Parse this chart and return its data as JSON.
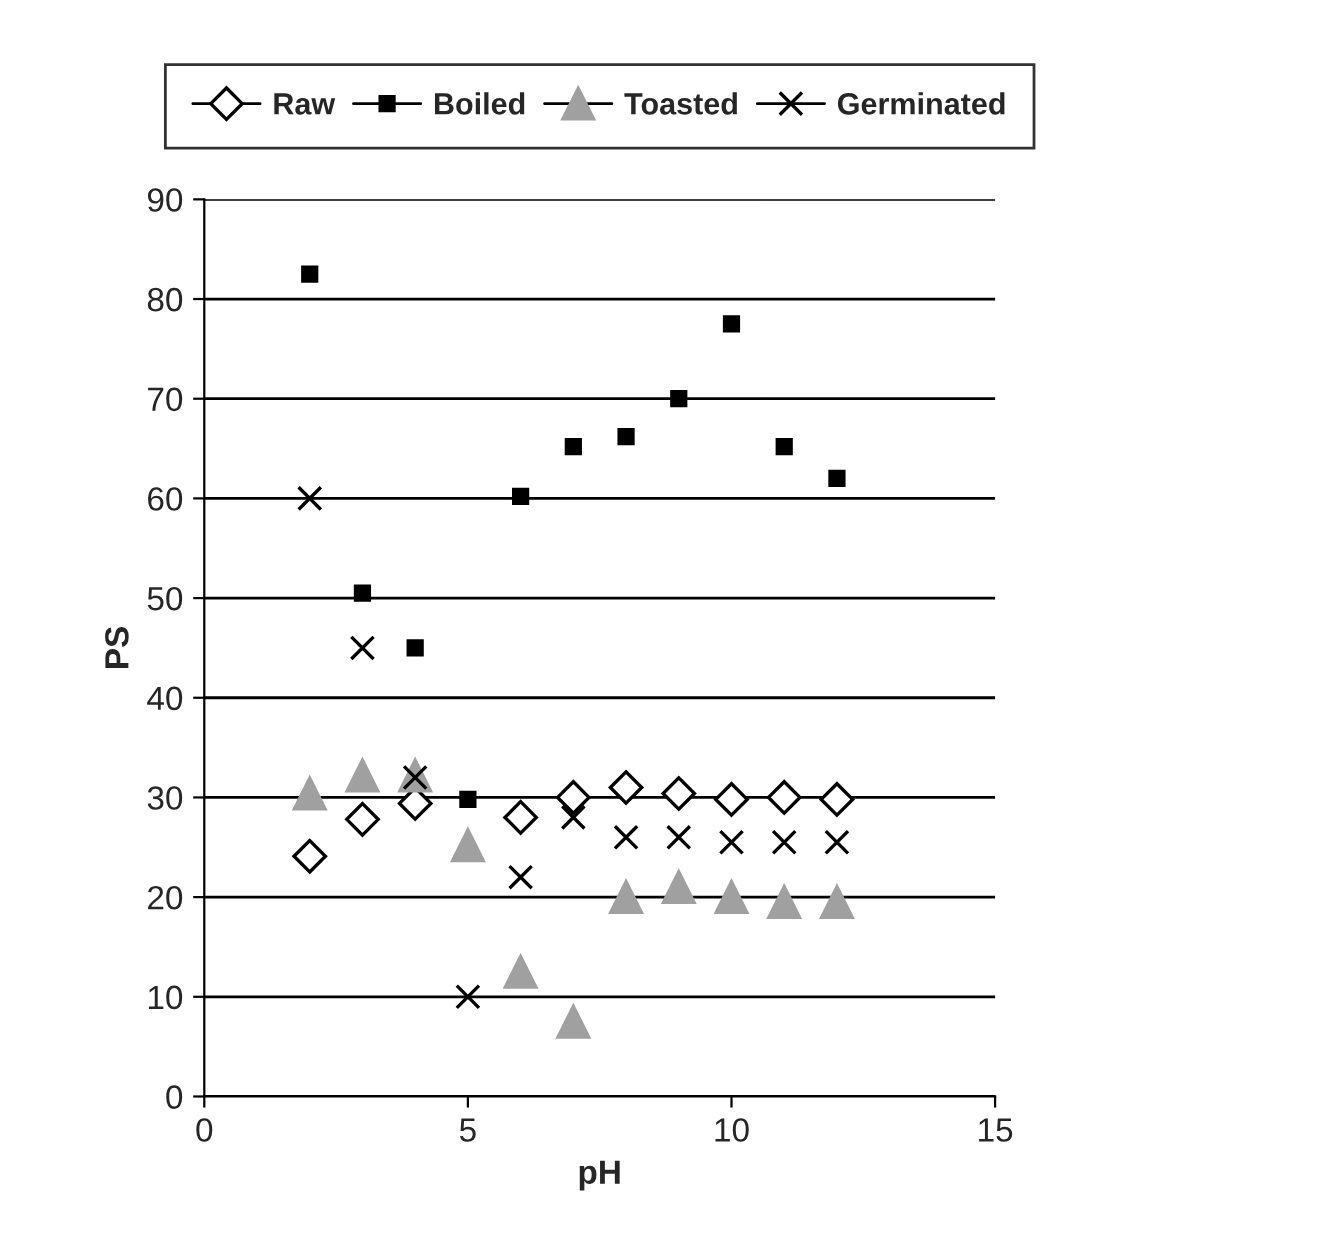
{
  "chart_data": {
    "type": "scatter",
    "xlabel": "pH",
    "ylabel": "PS",
    "xlim": [
      0,
      15
    ],
    "xticks": [
      0,
      5,
      10,
      15
    ],
    "ylim": [
      0,
      90
    ],
    "yticks": [
      0,
      10,
      20,
      30,
      40,
      50,
      60,
      70,
      80,
      90
    ],
    "grid": "y",
    "legend": "top",
    "series": [
      {
        "name": "Raw",
        "color": "#000000",
        "marker": "diamond",
        "x": [
          2,
          3,
          4,
          6,
          7,
          8,
          9,
          10,
          11,
          12
        ],
        "values": [
          24.1,
          27.8,
          29.4,
          28,
          30,
          31,
          30.4,
          29.8,
          30,
          29.8
        ]
      },
      {
        "name": "Boiled",
        "color": "#000000",
        "marker": "square",
        "x": [
          2,
          3,
          4,
          5,
          6,
          7,
          8,
          9,
          10,
          11,
          12
        ],
        "values": [
          82.5,
          50.5,
          45,
          29.8,
          60.2,
          65.2,
          66.2,
          70,
          77.5,
          65.2,
          62
        ]
      },
      {
        "name": "Toasted",
        "color": "#a0a0a0",
        "marker": "triangle",
        "x": [
          2,
          3,
          4,
          5,
          6,
          7,
          8,
          9,
          10,
          11,
          12
        ],
        "values": [
          30.4,
          32.2,
          32.2,
          25.2,
          12.5,
          7.5,
          20,
          21,
          20,
          19.5,
          19.5
        ]
      },
      {
        "name": "Germinated",
        "color": "#000000",
        "marker": "cross",
        "x": [
          2,
          3,
          4,
          5,
          6,
          7,
          8,
          9,
          10,
          11,
          12
        ],
        "values": [
          60,
          45,
          32,
          10,
          22,
          28,
          26,
          26,
          25.5,
          25.5,
          25.5
        ]
      }
    ]
  }
}
